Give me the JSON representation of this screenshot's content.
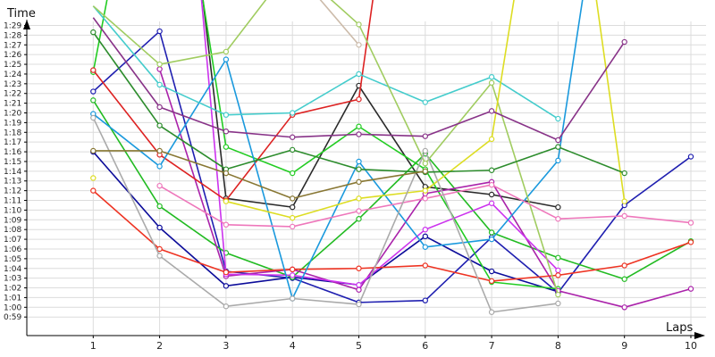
{
  "chart_data": {
    "type": "line",
    "title": "",
    "xlabel": "Laps",
    "ylabel": "Time",
    "x": [
      1,
      2,
      3,
      4,
      5,
      6,
      7,
      8,
      9,
      10
    ],
    "xlim": [
      0,
      10
    ],
    "ylim_seconds": [
      56,
      102
    ],
    "grid": true,
    "legend": "none",
    "yticks": [
      "0:59",
      "1:00",
      "1:01",
      "1:02",
      "1:03",
      "1:04",
      "1:05",
      "1:06",
      "1:07",
      "1:08",
      "1:09",
      "1:10",
      "1:11",
      "1:12",
      "1:13",
      "1:14",
      "1:15",
      "1:16",
      "1:17",
      "1:18",
      "1:19",
      "1:20",
      "1:21",
      "1:22",
      "1:23",
      "1:24",
      "1:25",
      "1:26",
      "1:27",
      "1:28",
      "1:29"
    ],
    "xticks": [
      "1",
      "2",
      "3",
      "4",
      "5",
      "6",
      "7",
      "8",
      "9",
      "10"
    ],
    "series": [
      {
        "color": "#2a2a2a",
        "values": [
          null,
          130,
          71.2,
          70.3,
          82.8,
          72.4,
          71.6,
          70.3,
          null,
          null
        ]
      },
      {
        "color": "#1f1fb0",
        "values": [
          82.2,
          88.4,
          63.7,
          63.0,
          60.5,
          60.7,
          67.2,
          61.5,
          70.5,
          75.5
        ]
      },
      {
        "color": "#0c0c9a",
        "values": [
          76.0,
          68.2,
          62.2,
          63.1,
          62.3,
          67.3,
          63.7,
          61.6,
          null,
          null
        ]
      },
      {
        "color": "#22bb22",
        "values": [
          81.3,
          70.4,
          65.6,
          63.1,
          69.1,
          75.8,
          67.7,
          65.1,
          62.9,
          66.8
        ]
      },
      {
        "color": "#22cc22",
        "values": [
          84.2,
          120,
          76.5,
          73.8,
          78.6,
          74.2,
          62.6,
          61.9,
          null,
          null
        ]
      },
      {
        "color": "#aa22aa",
        "values": [
          null,
          84.5,
          63.2,
          63.9,
          61.8,
          71.7,
          72.9,
          61.7,
          60.0,
          61.9
        ]
      },
      {
        "color": "#cc33ee",
        "values": [
          null,
          140,
          63.4,
          63.3,
          62.3,
          68.0,
          70.7,
          63.8,
          null,
          null
        ]
      },
      {
        "color": "#dd2222",
        "values": [
          84.4,
          75.7,
          71.0,
          79.8,
          81.4,
          130,
          null,
          null,
          null,
          null
        ]
      },
      {
        "color": "#ee3322",
        "values": [
          72.0,
          66.0,
          63.6,
          63.9,
          64.0,
          64.3,
          62.7,
          63.3,
          64.3,
          66.7
        ]
      },
      {
        "color": "#1a99dd",
        "values": [
          79.9,
          74.5,
          85.5,
          60.9,
          75.0,
          66.2,
          67.0,
          75.1,
          120,
          null
        ]
      },
      {
        "color": "#44cccc",
        "values": [
          91.0,
          82.9,
          79.8,
          80.0,
          84.0,
          81.1,
          83.7,
          79.4,
          null,
          null
        ]
      },
      {
        "color": "#a0cc60",
        "values": [
          91.0,
          85.0,
          86.3,
          95.2,
          89.1,
          74.8,
          83.1,
          61.3,
          null,
          null
        ]
      },
      {
        "color": "#dddd22",
        "values": [
          73.3,
          null,
          70.9,
          69.2,
          71.2,
          72.0,
          77.3,
          120,
          70.9,
          null
        ]
      },
      {
        "color": "#ee77bb",
        "values": [
          null,
          72.5,
          68.5,
          68.3,
          69.9,
          71.2,
          72.6,
          69.1,
          69.4,
          68.7
        ]
      },
      {
        "color": "#aaaaaa",
        "values": [
          79.5,
          65.3,
          60.1,
          60.9,
          60.3,
          76.1,
          59.5,
          60.4,
          null,
          null
        ]
      },
      {
        "color": "#2c8c2c",
        "values": [
          88.3,
          78.7,
          74.2,
          76.2,
          74.2,
          73.9,
          74.1,
          76.5,
          73.8,
          null
        ]
      },
      {
        "color": "#883388",
        "values": [
          89.8,
          80.6,
          78.1,
          77.5,
          77.8,
          77.6,
          80.2,
          77.2,
          87.3,
          null
        ]
      },
      {
        "color": "#887733",
        "values": [
          76.1,
          76.1,
          73.8,
          71.2,
          72.9,
          74.0,
          null,
          null,
          null,
          null
        ]
      },
      {
        "color": "#ccbbaa",
        "values": [
          null,
          null,
          null,
          95.0,
          87.0,
          null,
          null,
          null,
          null,
          null
        ]
      }
    ]
  }
}
